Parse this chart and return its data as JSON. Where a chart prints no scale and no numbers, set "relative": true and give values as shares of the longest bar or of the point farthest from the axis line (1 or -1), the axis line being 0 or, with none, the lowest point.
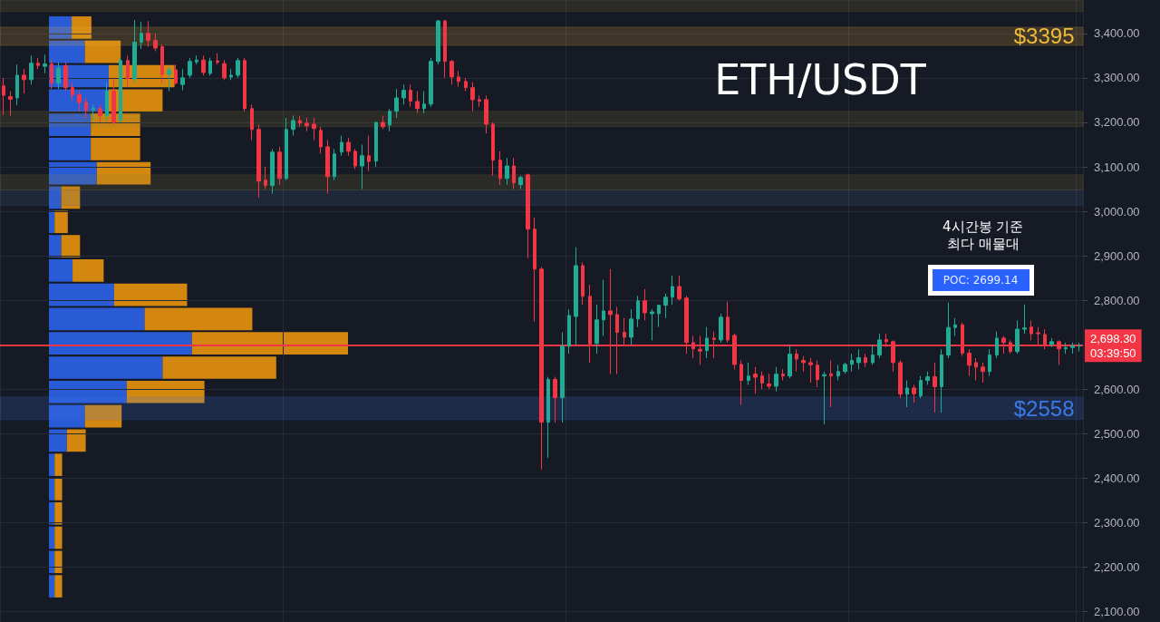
{
  "chart_data": [
    {
      "type": "candlestick",
      "title": "ETH/USDT",
      "categories": [
        null,
        null,
        null,
        null,
        null,
        null,
        null,
        null,
        null,
        null,
        null,
        null,
        null,
        null,
        null,
        null,
        null,
        null,
        null,
        null,
        null,
        null,
        null,
        null,
        null,
        null,
        null,
        null,
        null,
        null,
        null,
        null,
        null,
        null,
        null,
        null,
        null,
        null,
        null,
        null,
        null,
        null,
        null,
        null,
        null,
        null,
        null,
        null,
        null,
        null,
        null,
        null,
        null,
        null,
        null,
        null,
        null,
        null,
        null,
        null,
        null,
        null,
        null,
        null,
        null,
        null,
        null,
        null,
        null,
        null,
        null,
        null,
        null,
        null,
        null,
        null,
        null,
        null,
        null,
        null,
        null,
        null,
        null,
        null,
        null,
        null,
        null,
        null,
        null,
        null,
        null,
        null,
        null,
        null,
        null,
        null,
        null,
        null,
        null,
        null,
        null,
        null,
        null,
        null,
        null,
        null,
        null,
        null,
        null,
        null,
        null,
        null,
        null,
        null,
        null,
        null,
        null,
        null,
        null,
        null,
        null,
        null,
        null,
        null,
        null,
        null,
        null,
        null,
        null,
        null,
        null,
        null,
        null,
        null,
        null,
        null,
        null,
        null,
        null,
        null,
        null,
        null,
        null,
        null,
        null,
        null,
        null,
        null,
        null,
        null,
        null,
        null,
        null,
        null,
        null,
        null,
        null
      ],
      "ohlc": [
        [
          3282,
          3300,
          3217,
          3261
        ],
        [
          3258,
          3270,
          3215,
          3252
        ],
        [
          3255,
          3330,
          3238,
          3306
        ],
        [
          3306,
          3320,
          3265,
          3296
        ],
        [
          3296,
          3350,
          3285,
          3333
        ],
        [
          3333,
          3345,
          3320,
          3328
        ],
        [
          3326,
          3352,
          3310,
          3331
        ],
        [
          3331,
          3340,
          3275,
          3288
        ],
        [
          3288,
          3335,
          3275,
          3322
        ],
        [
          3327,
          3335,
          3270,
          3278
        ],
        [
          3278,
          3290,
          3250,
          3262
        ],
        [
          3262,
          3270,
          3225,
          3245
        ],
        [
          3245,
          3255,
          3210,
          3227
        ],
        [
          3228,
          3240,
          3205,
          3232
        ],
        [
          3231,
          3240,
          3200,
          3215
        ],
        [
          3215,
          3290,
          3205,
          3270
        ],
        [
          3270,
          3300,
          3195,
          3200
        ],
        [
          3204,
          3345,
          3200,
          3339
        ],
        [
          3339,
          3350,
          3280,
          3298
        ],
        [
          3298,
          3430,
          3290,
          3380
        ],
        [
          3380,
          3426,
          3365,
          3400
        ],
        [
          3400,
          3428,
          3370,
          3384
        ],
        [
          3384,
          3400,
          3360,
          3367
        ],
        [
          3370,
          3375,
          3290,
          3308
        ],
        [
          3308,
          3325,
          3270,
          3318
        ],
        [
          3318,
          3330,
          3285,
          3288
        ],
        [
          3285,
          3320,
          3272,
          3300
        ],
        [
          3306,
          3345,
          3300,
          3337
        ],
        [
          3336,
          3350,
          3330,
          3340
        ],
        [
          3340,
          3350,
          3305,
          3312
        ],
        [
          3310,
          3345,
          3305,
          3338
        ],
        [
          3338,
          3355,
          3330,
          3335
        ],
        [
          3332,
          3340,
          3295,
          3300
        ],
        [
          3302,
          3320,
          3295,
          3306
        ],
        [
          3306,
          3345,
          3300,
          3339
        ],
        [
          3339,
          3345,
          3225,
          3231
        ],
        [
          3231,
          3240,
          3160,
          3184
        ],
        [
          3184,
          3195,
          3031,
          3068
        ],
        [
          3070,
          3100,
          3050,
          3058
        ],
        [
          3058,
          3140,
          3040,
          3133
        ],
        [
          3133,
          3145,
          3060,
          3074
        ],
        [
          3074,
          3210,
          3070,
          3184
        ],
        [
          3184,
          3215,
          3170,
          3204
        ],
        [
          3204,
          3215,
          3190,
          3198
        ],
        [
          3198,
          3210,
          3180,
          3192
        ],
        [
          3196,
          3210,
          3160,
          3186
        ],
        [
          3182,
          3190,
          3130,
          3145
        ],
        [
          3145,
          3160,
          3040,
          3078
        ],
        [
          3078,
          3140,
          3070,
          3129
        ],
        [
          3133,
          3170,
          3125,
          3155
        ],
        [
          3155,
          3165,
          3125,
          3135
        ],
        [
          3135,
          3140,
          3095,
          3102
        ],
        [
          3102,
          3150,
          3050,
          3125
        ],
        [
          3125,
          3170,
          3090,
          3112
        ],
        [
          3113,
          3200,
          3100,
          3200
        ],
        [
          3200,
          3215,
          3185,
          3190
        ],
        [
          3194,
          3230,
          3180,
          3225
        ],
        [
          3225,
          3275,
          3210,
          3255
        ],
        [
          3255,
          3285,
          3240,
          3272
        ],
        [
          3272,
          3285,
          3235,
          3248
        ],
        [
          3247,
          3270,
          3220,
          3231
        ],
        [
          3231,
          3270,
          3220,
          3241
        ],
        [
          3241,
          3345,
          3235,
          3337
        ],
        [
          3337,
          3430,
          3330,
          3428
        ],
        [
          3428,
          3430,
          3300,
          3337
        ],
        [
          3337,
          3340,
          3285,
          3302
        ],
        [
          3302,
          3315,
          3280,
          3292
        ],
        [
          3292,
          3300,
          3270,
          3278
        ],
        [
          3278,
          3290,
          3225,
          3251
        ],
        [
          3251,
          3260,
          3235,
          3248
        ],
        [
          3251,
          3260,
          3175,
          3196
        ],
        [
          3196,
          3200,
          3080,
          3115
        ],
        [
          3115,
          3135,
          3060,
          3074
        ],
        [
          3074,
          3120,
          3060,
          3102
        ],
        [
          3102,
          3120,
          3050,
          3064
        ],
        [
          3060,
          3080,
          3050,
          3076
        ],
        [
          3082,
          3085,
          2895,
          2960
        ],
        [
          2960,
          2986,
          2752,
          2870
        ],
        [
          2870,
          2875,
          2420,
          2526
        ],
        [
          2526,
          2628,
          2446,
          2622
        ],
        [
          2622,
          2628,
          2525,
          2581
        ],
        [
          2581,
          2728,
          2525,
          2697
        ],
        [
          2697,
          2780,
          2680,
          2766
        ],
        [
          2764,
          2919,
          2700,
          2878
        ],
        [
          2878,
          2885,
          2790,
          2809
        ],
        [
          2809,
          2835,
          2660,
          2701
        ],
        [
          2703,
          2790,
          2680,
          2756
        ],
        [
          2756,
          2846,
          2720,
          2776
        ],
        [
          2776,
          2870,
          2634,
          2768
        ],
        [
          2768,
          2785,
          2634,
          2728
        ],
        [
          2728,
          2760,
          2700,
          2717
        ],
        [
          2717,
          2780,
          2700,
          2758
        ],
        [
          2758,
          2810,
          2740,
          2799
        ],
        [
          2799,
          2825,
          2755,
          2772
        ],
        [
          2770,
          2780,
          2710,
          2774
        ],
        [
          2770,
          2790,
          2740,
          2789
        ],
        [
          2789,
          2815,
          2760,
          2807
        ],
        [
          2807,
          2856,
          2790,
          2831
        ],
        [
          2831,
          2856,
          2800,
          2803
        ],
        [
          2805,
          2810,
          2680,
          2705
        ],
        [
          2705,
          2720,
          2670,
          2691
        ],
        [
          2690,
          2720,
          2655,
          2686
        ],
        [
          2687,
          2740,
          2670,
          2715
        ],
        [
          2715,
          2730,
          2670,
          2712
        ],
        [
          2711,
          2770,
          2705,
          2762
        ],
        [
          2762,
          2797,
          2705,
          2711
        ],
        [
          2721,
          2725,
          2645,
          2656
        ],
        [
          2656,
          2665,
          2565,
          2620
        ],
        [
          2620,
          2660,
          2610,
          2630
        ],
        [
          2634,
          2650,
          2590,
          2627
        ],
        [
          2630,
          2640,
          2600,
          2614
        ],
        [
          2612,
          2635,
          2600,
          2607
        ],
        [
          2607,
          2650,
          2595,
          2634
        ],
        [
          2634,
          2645,
          2620,
          2630
        ],
        [
          2630,
          2700,
          2625,
          2679
        ],
        [
          2679,
          2690,
          2640,
          2668
        ],
        [
          2665,
          2675,
          2640,
          2660
        ],
        [
          2660,
          2670,
          2615,
          2655
        ],
        [
          2654,
          2665,
          2605,
          2622
        ],
        [
          2630,
          2640,
          2522,
          2633
        ],
        [
          2635,
          2665,
          2560,
          2630
        ],
        [
          2630,
          2655,
          2620,
          2640
        ],
        [
          2640,
          2660,
          2635,
          2656
        ],
        [
          2656,
          2680,
          2640,
          2665
        ],
        [
          2660,
          2690,
          2645,
          2671
        ],
        [
          2671,
          2680,
          2650,
          2660
        ],
        [
          2660,
          2700,
          2655,
          2677
        ],
        [
          2677,
          2725,
          2670,
          2711
        ],
        [
          2712,
          2725,
          2695,
          2707
        ],
        [
          2707,
          2710,
          2640,
          2660
        ],
        [
          2660,
          2665,
          2580,
          2589
        ],
        [
          2589,
          2620,
          2560,
          2603
        ],
        [
          2603,
          2610,
          2570,
          2590
        ],
        [
          2585,
          2630,
          2580,
          2620
        ],
        [
          2620,
          2640,
          2610,
          2628
        ],
        [
          2628,
          2660,
          2548,
          2606
        ],
        [
          2606,
          2690,
          2548,
          2677
        ],
        [
          2677,
          2795,
          2670,
          2739
        ],
        [
          2739,
          2760,
          2720,
          2745
        ],
        [
          2745,
          2750,
          2675,
          2681
        ],
        [
          2681,
          2690,
          2630,
          2654
        ],
        [
          2660,
          2670,
          2620,
          2650
        ],
        [
          2650,
          2660,
          2615,
          2640
        ],
        [
          2640,
          2690,
          2630,
          2677
        ],
        [
          2677,
          2730,
          2670,
          2715
        ],
        [
          2715,
          2720,
          2680,
          2705
        ],
        [
          2705,
          2710,
          2680,
          2685
        ],
        [
          2685,
          2755,
          2680,
          2735
        ],
        [
          2735,
          2791,
          2725,
          2738
        ],
        [
          2740,
          2755,
          2710,
          2725
        ],
        [
          2727,
          2740,
          2700,
          2725
        ],
        [
          2723,
          2735,
          2690,
          2701
        ],
        [
          2701,
          2715,
          2695,
          2707
        ],
        [
          2707,
          2710,
          2655,
          2691
        ],
        [
          2691,
          2705,
          2680,
          2694
        ],
        [
          2694,
          2705,
          2680,
          2698
        ],
        [
          2697,
          2705,
          2685,
          2698.3
        ]
      ],
      "ylim": [
        2077,
        3475
      ],
      "yticks": [
        {
          "value": 2100,
          "label": "2,100.00"
        },
        {
          "value": 2200,
          "label": "2,200.00"
        },
        {
          "value": 2300,
          "label": "2,300.00"
        },
        {
          "value": 2400,
          "label": "2,400.00"
        },
        {
          "value": 2500,
          "label": "2,500.00"
        },
        {
          "value": 2600,
          "label": "2,600.00"
        },
        {
          "value": 2800,
          "label": "2,800.00"
        },
        {
          "value": 2900,
          "label": "2,900.00"
        },
        {
          "value": 3000,
          "label": "3,000.00"
        },
        {
          "value": 3100,
          "label": "3,100.00"
        },
        {
          "value": 3200,
          "label": "3,200.00"
        },
        {
          "value": 3300,
          "label": "3,300.00"
        },
        {
          "value": 3400,
          "label": "3,400.00"
        }
      ],
      "grid": true,
      "ref_lines": [
        {
          "axis": "y",
          "value": 2698.3,
          "label": "2,698.30\n03:39:50",
          "color": "#f23645"
        }
      ],
      "bands": [
        {
          "axis": "y",
          "from": 3449,
          "to": 3475,
          "label": null,
          "color": "#8a8030"
        },
        {
          "axis": "y",
          "from": 3373,
          "to": 3414,
          "label": "$3395",
          "color": "#f0b93a"
        },
        {
          "axis": "y",
          "from": 3190,
          "to": 3225,
          "label": null,
          "color": "#8a8030"
        },
        {
          "axis": "y",
          "from": 3048,
          "to": 3082,
          "label": null,
          "color": "#8a8030"
        },
        {
          "axis": "y",
          "from": 3013,
          "to": 3048,
          "label": null,
          "color": "#4a6a90"
        },
        {
          "axis": "y",
          "from": 2532,
          "to": 2583,
          "label": "$2558",
          "color": "#3b7be8"
        }
      ],
      "annotations": [
        "4시간봉 기준\n최다 매물대",
        "POC: 2699.14"
      ]
    },
    {
      "type": "bar",
      "orientation": "horizontal",
      "stacked": true,
      "relative": true,
      "categories": [
        null,
        null,
        null,
        null,
        null,
        null,
        null,
        null,
        null,
        null,
        null,
        null,
        null,
        null,
        null,
        null,
        null,
        null,
        null,
        null,
        null,
        null,
        null,
        null
      ],
      "series": [
        {
          "color": "#2a5bd7",
          "values": [
            0.076,
            0.12,
            0.2,
            0.2,
            0.14,
            0.14,
            0.16,
            0.041,
            0.019,
            0.041,
            0.079,
            0.218,
            0.32,
            0.478,
            0.38,
            0.26,
            0.12,
            0.06,
            0.019,
            0.019,
            0.019,
            0.019,
            0.019,
            0.019
          ]
        },
        {
          "color": "#d4870f",
          "values": [
            0.066,
            0.12,
            0.22,
            0.18,
            0.165,
            0.165,
            0.18,
            0.063,
            0.044,
            0.063,
            0.104,
            0.244,
            0.36,
            0.522,
            0.38,
            0.26,
            0.123,
            0.063,
            0.025,
            0.025,
            0.025,
            0.025,
            0.025,
            0.025
          ]
        }
      ]
    }
  ]
}
